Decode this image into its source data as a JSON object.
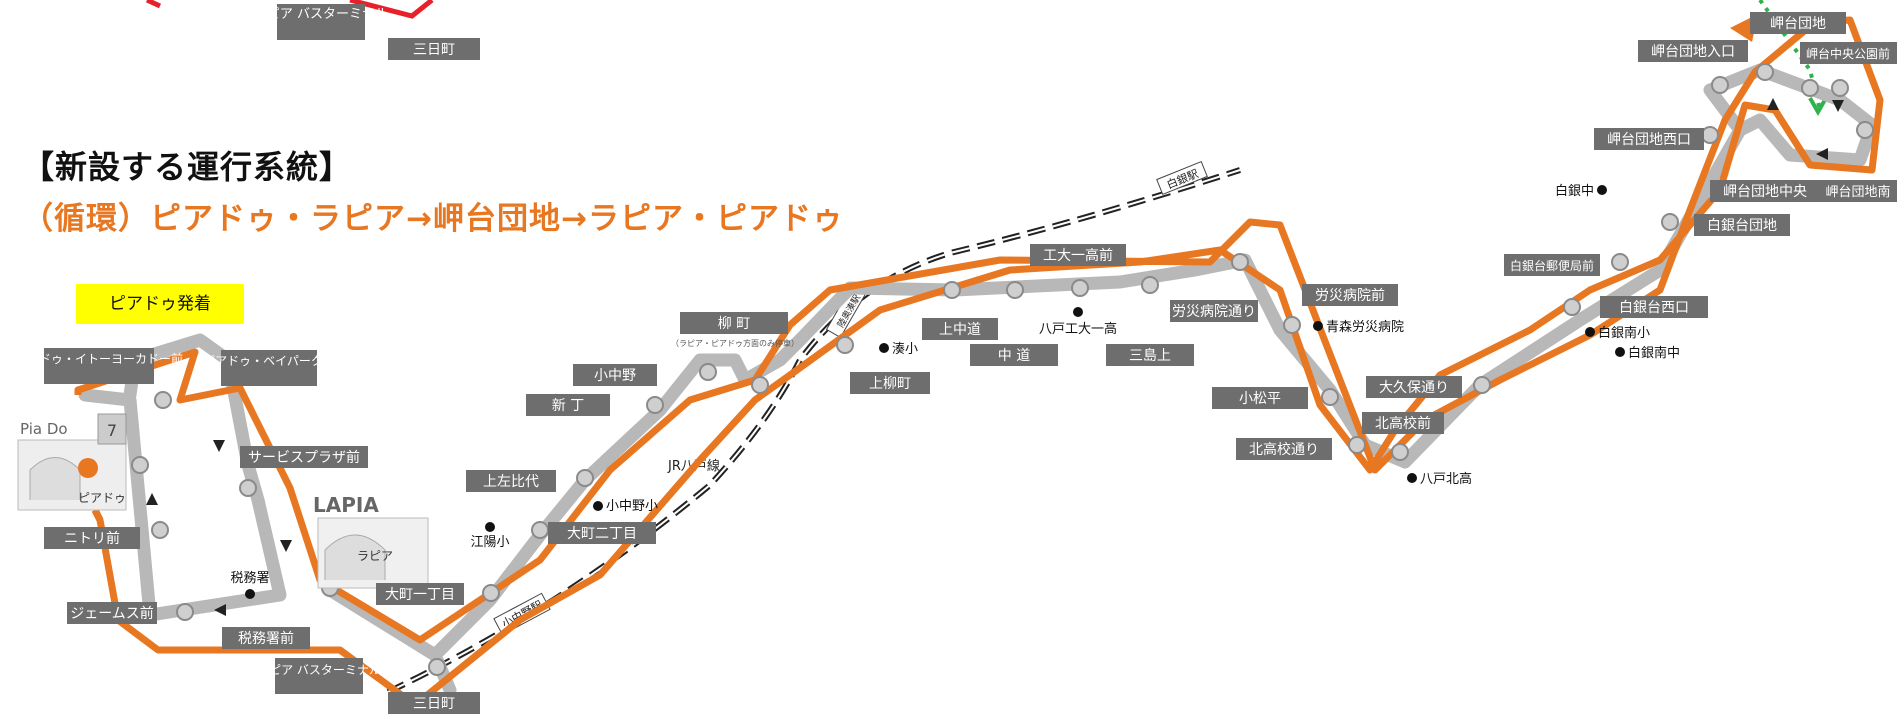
{
  "heading": "【新設する運行系統】",
  "subheading": "（循環）ピアドゥ・ラピア→岬台団地→ラピア・ピアドゥ",
  "badge": "ピアドゥ発着",
  "colors": {
    "route": "#e87722",
    "old_route": "#e8202a",
    "road": "#b8b8b8",
    "stop_label_bg": "#6e6e6e",
    "badge": "#ffff00",
    "green_arrow": "#2db34a"
  },
  "stops": {
    "piadou_ito": "ピアドゥ・イトーヨーカドー前",
    "piadou_bay": "ピアドゥ・ベイパーク前",
    "services_plaza": "サービスプラザ前",
    "nitori": "ニトリ前",
    "jeems": "ジェームス前",
    "tax_office_front": "税務署前",
    "lapia_bt_top": "ラピア バスターミナル",
    "lapia_bt": "ラピア バスターミナル",
    "chome_top": "三日町",
    "chome": "三日町",
    "omachi1": "大町一丁目",
    "omachi2": "大町二丁目",
    "kamihidarihiji": "上左比代",
    "shincho": "新 丁",
    "konakano": "小中野",
    "yanagimachi": "柳 町",
    "yanagimachi_note": "（ラピア・ピアドゥ方面のみ停車）",
    "kamiyanagimachi": "上柳町",
    "kaminakamichi": "上中道",
    "nakamichi": "中 道",
    "mishimakami": "三島上",
    "kodai_mae": "工大一高前",
    "rosai_dori": "労災病院通り",
    "rosai_mae": "労災病院前",
    "komatsutai": "小松平",
    "kitakoko_dori": "北高校通り",
    "kitakoko_mae": "北高校前",
    "okubo_dori": "大久保通り",
    "shirogane_nishi": "白銀台西口",
    "shirogane_yubin": "白銀台郵便局前",
    "shirogane_danchi": "白銀台団地",
    "misaki_nishi": "岬台団地西口",
    "misaki_chuo": "岬台団地中央",
    "misaki_entrance": "岬台団地入口",
    "misaki_park": "岬台中央公園前",
    "misaki_top": "岬台団地",
    "misaki_south": "岬台団地南"
  },
  "landmarks": {
    "pia_dou_logo": "Pia Do",
    "piadou": "ピアドゥ",
    "lapia_logo": "LAPIA",
    "lapia": "ラピア",
    "tax_office": "税務署",
    "edo_school": "江陽小",
    "konakano_school": "小中野小",
    "minato_school": "湊小",
    "hachinohe_kodai": "八戸工大一高",
    "aomori_rosai": "青森労災病院",
    "hachinohe_kita": "八戸北高",
    "shirogane_chu": "白銀中",
    "shiroganeminami_sho": "白銀南小",
    "shiroganeminami_chu": "白銀南中",
    "jr_line": "JR八戸線",
    "konakano_station": "小中野駅",
    "mutsu_minato_station": "陸奥湊駅",
    "shirogane_station": "白銀駅"
  }
}
